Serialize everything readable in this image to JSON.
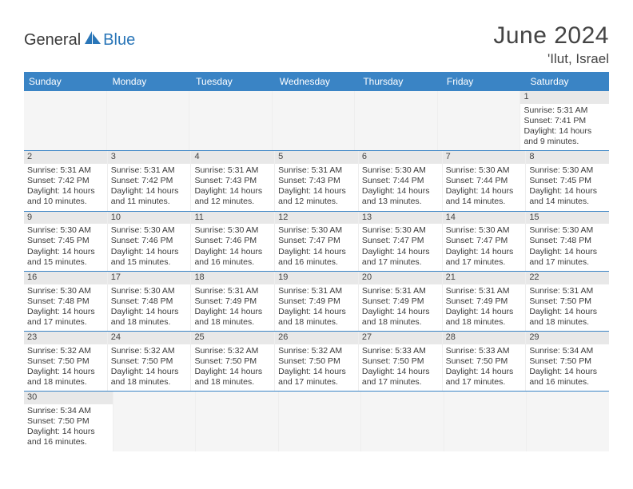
{
  "brand": {
    "general": "General",
    "blue": "Blue"
  },
  "header": {
    "title": "June 2024",
    "location": "'Ilut, Israel"
  },
  "colors": {
    "header_bg": "#3a84c5",
    "header_text": "#ffffff",
    "daynum_bg": "#e8e8e8",
    "border": "#3a84c5",
    "text": "#3a3a3a",
    "brand_blue": "#2a76b8"
  },
  "weekdays": [
    "Sunday",
    "Monday",
    "Tuesday",
    "Wednesday",
    "Thursday",
    "Friday",
    "Saturday"
  ],
  "weeks": [
    [
      null,
      null,
      null,
      null,
      null,
      null,
      {
        "n": "1",
        "sr": "Sunrise: 5:31 AM",
        "ss": "Sunset: 7:41 PM",
        "d1": "Daylight: 14 hours",
        "d2": "and 9 minutes."
      }
    ],
    [
      {
        "n": "2",
        "sr": "Sunrise: 5:31 AM",
        "ss": "Sunset: 7:42 PM",
        "d1": "Daylight: 14 hours",
        "d2": "and 10 minutes."
      },
      {
        "n": "3",
        "sr": "Sunrise: 5:31 AM",
        "ss": "Sunset: 7:42 PM",
        "d1": "Daylight: 14 hours",
        "d2": "and 11 minutes."
      },
      {
        "n": "4",
        "sr": "Sunrise: 5:31 AM",
        "ss": "Sunset: 7:43 PM",
        "d1": "Daylight: 14 hours",
        "d2": "and 12 minutes."
      },
      {
        "n": "5",
        "sr": "Sunrise: 5:31 AM",
        "ss": "Sunset: 7:43 PM",
        "d1": "Daylight: 14 hours",
        "d2": "and 12 minutes."
      },
      {
        "n": "6",
        "sr": "Sunrise: 5:30 AM",
        "ss": "Sunset: 7:44 PM",
        "d1": "Daylight: 14 hours",
        "d2": "and 13 minutes."
      },
      {
        "n": "7",
        "sr": "Sunrise: 5:30 AM",
        "ss": "Sunset: 7:44 PM",
        "d1": "Daylight: 14 hours",
        "d2": "and 14 minutes."
      },
      {
        "n": "8",
        "sr": "Sunrise: 5:30 AM",
        "ss": "Sunset: 7:45 PM",
        "d1": "Daylight: 14 hours",
        "d2": "and 14 minutes."
      }
    ],
    [
      {
        "n": "9",
        "sr": "Sunrise: 5:30 AM",
        "ss": "Sunset: 7:45 PM",
        "d1": "Daylight: 14 hours",
        "d2": "and 15 minutes."
      },
      {
        "n": "10",
        "sr": "Sunrise: 5:30 AM",
        "ss": "Sunset: 7:46 PM",
        "d1": "Daylight: 14 hours",
        "d2": "and 15 minutes."
      },
      {
        "n": "11",
        "sr": "Sunrise: 5:30 AM",
        "ss": "Sunset: 7:46 PM",
        "d1": "Daylight: 14 hours",
        "d2": "and 16 minutes."
      },
      {
        "n": "12",
        "sr": "Sunrise: 5:30 AM",
        "ss": "Sunset: 7:47 PM",
        "d1": "Daylight: 14 hours",
        "d2": "and 16 minutes."
      },
      {
        "n": "13",
        "sr": "Sunrise: 5:30 AM",
        "ss": "Sunset: 7:47 PM",
        "d1": "Daylight: 14 hours",
        "d2": "and 17 minutes."
      },
      {
        "n": "14",
        "sr": "Sunrise: 5:30 AM",
        "ss": "Sunset: 7:47 PM",
        "d1": "Daylight: 14 hours",
        "d2": "and 17 minutes."
      },
      {
        "n": "15",
        "sr": "Sunrise: 5:30 AM",
        "ss": "Sunset: 7:48 PM",
        "d1": "Daylight: 14 hours",
        "d2": "and 17 minutes."
      }
    ],
    [
      {
        "n": "16",
        "sr": "Sunrise: 5:30 AM",
        "ss": "Sunset: 7:48 PM",
        "d1": "Daylight: 14 hours",
        "d2": "and 17 minutes."
      },
      {
        "n": "17",
        "sr": "Sunrise: 5:30 AM",
        "ss": "Sunset: 7:48 PM",
        "d1": "Daylight: 14 hours",
        "d2": "and 18 minutes."
      },
      {
        "n": "18",
        "sr": "Sunrise: 5:31 AM",
        "ss": "Sunset: 7:49 PM",
        "d1": "Daylight: 14 hours",
        "d2": "and 18 minutes."
      },
      {
        "n": "19",
        "sr": "Sunrise: 5:31 AM",
        "ss": "Sunset: 7:49 PM",
        "d1": "Daylight: 14 hours",
        "d2": "and 18 minutes."
      },
      {
        "n": "20",
        "sr": "Sunrise: 5:31 AM",
        "ss": "Sunset: 7:49 PM",
        "d1": "Daylight: 14 hours",
        "d2": "and 18 minutes."
      },
      {
        "n": "21",
        "sr": "Sunrise: 5:31 AM",
        "ss": "Sunset: 7:49 PM",
        "d1": "Daylight: 14 hours",
        "d2": "and 18 minutes."
      },
      {
        "n": "22",
        "sr": "Sunrise: 5:31 AM",
        "ss": "Sunset: 7:50 PM",
        "d1": "Daylight: 14 hours",
        "d2": "and 18 minutes."
      }
    ],
    [
      {
        "n": "23",
        "sr": "Sunrise: 5:32 AM",
        "ss": "Sunset: 7:50 PM",
        "d1": "Daylight: 14 hours",
        "d2": "and 18 minutes."
      },
      {
        "n": "24",
        "sr": "Sunrise: 5:32 AM",
        "ss": "Sunset: 7:50 PM",
        "d1": "Daylight: 14 hours",
        "d2": "and 18 minutes."
      },
      {
        "n": "25",
        "sr": "Sunrise: 5:32 AM",
        "ss": "Sunset: 7:50 PM",
        "d1": "Daylight: 14 hours",
        "d2": "and 18 minutes."
      },
      {
        "n": "26",
        "sr": "Sunrise: 5:32 AM",
        "ss": "Sunset: 7:50 PM",
        "d1": "Daylight: 14 hours",
        "d2": "and 17 minutes."
      },
      {
        "n": "27",
        "sr": "Sunrise: 5:33 AM",
        "ss": "Sunset: 7:50 PM",
        "d1": "Daylight: 14 hours",
        "d2": "and 17 minutes."
      },
      {
        "n": "28",
        "sr": "Sunrise: 5:33 AM",
        "ss": "Sunset: 7:50 PM",
        "d1": "Daylight: 14 hours",
        "d2": "and 17 minutes."
      },
      {
        "n": "29",
        "sr": "Sunrise: 5:34 AM",
        "ss": "Sunset: 7:50 PM",
        "d1": "Daylight: 14 hours",
        "d2": "and 16 minutes."
      }
    ],
    [
      {
        "n": "30",
        "sr": "Sunrise: 5:34 AM",
        "ss": "Sunset: 7:50 PM",
        "d1": "Daylight: 14 hours",
        "d2": "and 16 minutes."
      },
      null,
      null,
      null,
      null,
      null,
      null
    ]
  ]
}
